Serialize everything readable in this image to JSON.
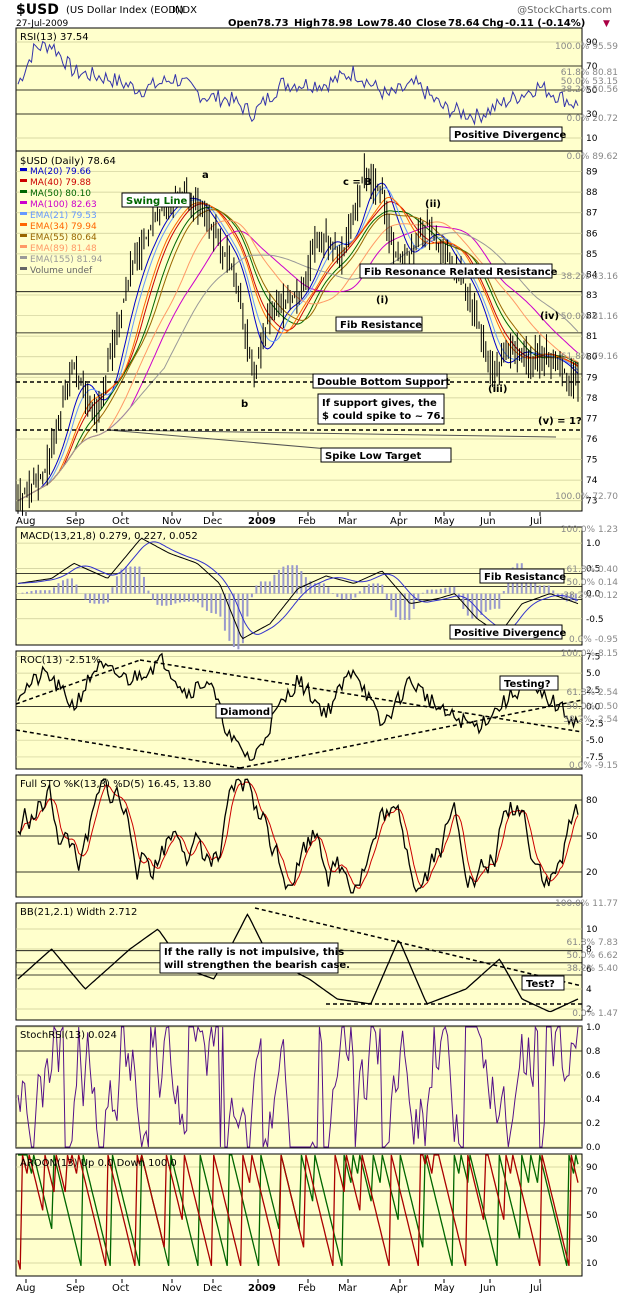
{
  "header": {
    "symbol": "$USD",
    "name": "(US Dollar Index (EOD))",
    "exchange": "INDX",
    "date": "27-Jul-2009",
    "open_label": "Open",
    "open": "78.73",
    "high_label": "High",
    "high": "78.98",
    "low_label": "Low",
    "low": "78.40",
    "close_label": "Close",
    "close": "78.64",
    "chg_label": "Chg",
    "chg": "-0.11 (-0.14%)",
    "chg_arrow": "▼",
    "watermark": "@StockCharts.com"
  },
  "colors": {
    "panel_bg": "#ffffcc",
    "price": "#000000",
    "ma20": "#0000cc",
    "ma40": "#cc0000",
    "ma50": "#006600",
    "ma100": "#cc00cc",
    "ema21": "#6699ff",
    "ema34": "#ff6600",
    "ema55": "#996600",
    "ema89": "#ff9966",
    "ema155": "#999999",
    "rsi": "#3333aa",
    "macd": "#000000",
    "signal": "#3333cc",
    "histogram": "#9999cc",
    "sto_k": "#000000",
    "sto_d": "#cc0000",
    "aroon_up": "#006600",
    "aroon_down": "#aa0000"
  },
  "x_axis": {
    "months": [
      "Aug",
      "Sep",
      "Oct",
      "Nov",
      "Dec",
      "2009",
      "Feb",
      "Mar",
      "Apr",
      "May",
      "Jun",
      "Jul"
    ]
  },
  "panels": {
    "rsi": {
      "label": "RSI(13) 37.54",
      "ticks": [
        "90",
        "70",
        "50",
        "30",
        "10"
      ],
      "fib_labels": [
        "100.0% 95.59",
        "61.8% 80.81",
        "50.0% 53.15",
        "38.2% 50.56",
        "0.0% 20.72"
      ],
      "annotation": "Positive Divergence"
    },
    "price": {
      "label": "$USD (Daily) 78.64",
      "legend": [
        {
          "text": "MA(20) 79.66",
          "color": "#0000cc"
        },
        {
          "text": "MA(40) 79.88",
          "color": "#cc0000"
        },
        {
          "text": "MA(50) 80.10",
          "color": "#006600"
        },
        {
          "text": "MA(100) 82.63",
          "color": "#cc00cc"
        },
        {
          "text": "EMA(21) 79.53",
          "color": "#6699ff"
        },
        {
          "text": "EMA(34) 79.94",
          "color": "#ff6600"
        },
        {
          "text": "EMA(55) 80.64",
          "color": "#996600"
        },
        {
          "text": "EMA(89) 81.48",
          "color": "#ff9966"
        },
        {
          "text": "EMA(155) 81.94",
          "color": "#999999"
        },
        {
          "text": "Volume undef",
          "color": "#666666"
        }
      ],
      "ticks": [
        "89",
        "88",
        "87",
        "86",
        "85",
        "84",
        "83",
        "82",
        "81",
        "80",
        "79",
        "78",
        "77",
        "76",
        "75",
        "74",
        "73"
      ],
      "fib_labels": [
        "0.0% 89.62",
        "38.2% 83.16",
        "50.0% 81.16",
        "61.8% 79.16",
        "100.0% 72.70"
      ],
      "wave_labels": [
        "a",
        "b",
        "c = B",
        "(i)",
        "(ii)",
        "(iii)",
        "(iv)",
        "(v) = 1?"
      ],
      "annotations": {
        "swing_line": "Swing Line",
        "fib_resonance": "Fib Resonance Related Resistance",
        "fib_resistance": "Fib Resistance",
        "double_bottom": "Double Bottom Support",
        "support_note_1": "If support gives, the",
        "support_note_2": "$ could spike to ~ 76.",
        "spike_low": "Spike Low Target"
      }
    },
    "macd": {
      "label": "MACD(13,21,8) 0.279, 0.227, 0.052",
      "ticks": [
        "1.0",
        "0.5",
        "0.0",
        "-0.5"
      ],
      "fib_labels": [
        "100.0% 1.23",
        "61.8% 0.40",
        "50.0% 0.14",
        "38.2% -0.12",
        "0.0% -0.95"
      ],
      "annotations": [
        "Fib Resistance",
        "Positive Divergence"
      ]
    },
    "roc": {
      "label": "ROC(13) -2.51%",
      "ticks": [
        "7.5",
        "5.0",
        "2.5",
        "0.0",
        "-2.5",
        "-5.0",
        "-7.5"
      ],
      "fib_labels": [
        "100.0% 8.15",
        "61.8% 2.54",
        "50.0% 0.50",
        "38.2% -2.54",
        "0.0% -9.15"
      ],
      "annotations": [
        "Testing?",
        "Diamond"
      ]
    },
    "sto": {
      "label": "Full STO %K(13,3) %D(5) 16.45, 13.80",
      "ticks": [
        "80",
        "50",
        "20"
      ]
    },
    "bb": {
      "label": "BB(21,2.1) Width 2.712",
      "ticks": [
        "10",
        "8",
        "6",
        "4",
        "2"
      ],
      "fib_labels": [
        "100.0% 11.77",
        "61.8% 7.83",
        "50.0% 6.62",
        "38.2% 5.40",
        "0.0% 1.47"
      ],
      "note_1": "If the rally is not impulsive, this",
      "note_2": "will strengthen the bearish case.",
      "test": "Test?"
    },
    "stochrsi": {
      "label": "StochRSI(13) 0.024",
      "ticks": [
        "1.0",
        "0.8",
        "0.6",
        "0.4",
        "0.2",
        "0.0"
      ]
    },
    "aroon": {
      "label": "AROON(13) Up 0.0 Down 100.0",
      "ticks": [
        "90",
        "70",
        "50",
        "30",
        "10"
      ]
    }
  },
  "chart_data": {
    "type": "line",
    "title": "$USD (US Dollar Index (EOD))",
    "x": [
      "Aug",
      "Sep",
      "Oct",
      "Nov",
      "Dec",
      "2009",
      "Feb",
      "Mar",
      "Apr",
      "May",
      "Jun",
      "Jul",
      "27-Jul"
    ],
    "series": [
      {
        "name": "$USD (Daily)",
        "values": [
          73.0,
          77.5,
          80.0,
          86.5,
          86.0,
          82.0,
          85.0,
          88.5,
          84.5,
          82.5,
          79.0,
          80.5,
          78.64
        ]
      },
      {
        "name": "MA(20)",
        "values": [
          72.8,
          77.0,
          79.8,
          86.0,
          85.5,
          81.2,
          84.0,
          87.5,
          84.8,
          83.0,
          79.5,
          80.6,
          79.66
        ]
      },
      {
        "name": "MA(100)",
        "values": [
          72.9,
          73.5,
          75.5,
          78.5,
          82.0,
          83.0,
          84.0,
          85.0,
          85.8,
          85.5,
          84.5,
          83.5,
          82.63
        ]
      }
    ],
    "ylim": [
      72.7,
      89.62
    ],
    "legend": "top-left"
  }
}
